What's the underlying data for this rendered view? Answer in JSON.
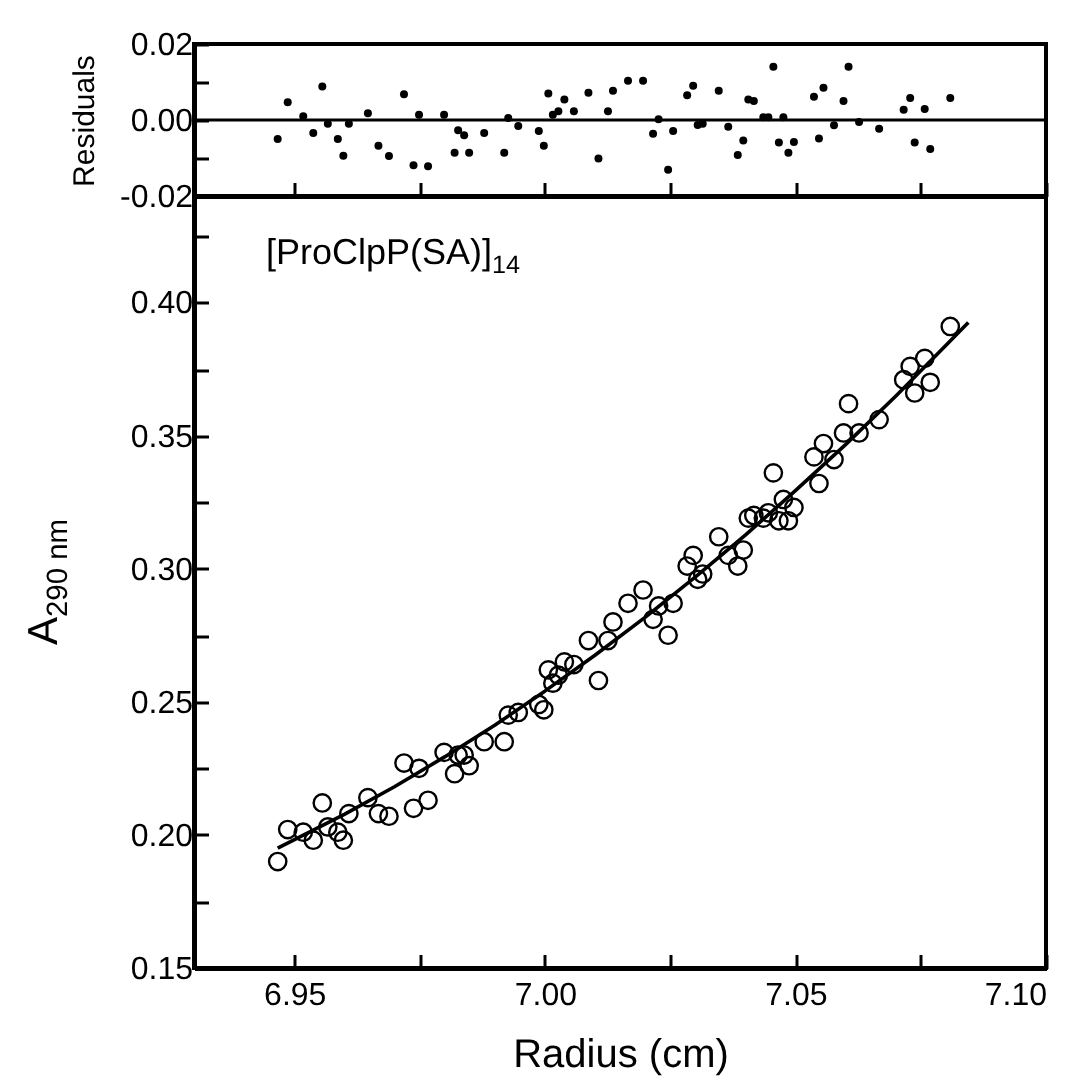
{
  "chart_data": [
    {
      "type": "scatter",
      "ylabel": "Residuals",
      "xlim": [
        6.93,
        7.1
      ],
      "ylim": [
        -0.02,
        0.02
      ],
      "tick_labels": "y",
      "grid": false,
      "xticks": [
        6.95,
        6.975,
        7,
        7.025,
        7.05,
        7.075,
        7.1
      ],
      "yticks": [
        0.02,
        {
          "value": 0.01,
          "label": null
        },
        {
          "value": 0,
          "label": "0.00"
        },
        {
          "value": -0.01,
          "label": null
        },
        -0.02
      ],
      "ref_lines": [
        {
          "axis": "y",
          "value": 0,
          "color": "#000000"
        }
      ],
      "series": [
        {
          "type": "scatter",
          "color": "#000000",
          "marker": "circle",
          "x": [
            6.9467,
            6.9487,
            6.9518,
            6.9538,
            6.9556,
            6.9567,
            6.9587,
            6.9598,
            6.9609,
            6.9647,
            6.9668,
            6.9689,
            6.9719,
            6.9738,
            6.9749,
            6.9767,
            6.9799,
            6.982,
            6.9827,
            6.9839,
            6.9849,
            6.9879,
            6.9919,
            6.9927,
            6.9947,
            6.9988,
            6.9998,
            7.0007,
            7.0016,
            7.0027,
            7.0039,
            7.0058,
            7.0087,
            7.0107,
            7.0126,
            7.0136,
            7.0166,
            7.0196,
            7.0216,
            7.0227,
            7.0246,
            7.0256,
            7.0284,
            7.0296,
            7.0305,
            7.0315,
            7.0347,
            7.0366,
            7.0385,
            7.0396,
            7.0406,
            7.0417,
            7.0436,
            7.0446,
            7.0456,
            7.0467,
            7.0476,
            7.0486,
            7.0497,
            7.0537,
            7.0547,
            7.0556,
            7.0577,
            7.0596,
            7.0606,
            7.0627,
            7.0667,
            7.0716,
            7.0729,
            7.0738,
            7.0758,
            7.0769,
            7.0809
          ],
          "values": [
            -0.005,
            0.0047,
            0.001,
            -0.0034,
            0.0088,
            -0.001,
            -0.005,
            -0.0094,
            -0.001,
            0.0018,
            -0.0068,
            -0.0095,
            0.0068,
            -0.0119,
            0.0014,
            -0.0122,
            0.0014,
            -0.0086,
            -0.0027,
            -0.004,
            -0.0086,
            -0.0034,
            -0.0086,
            0.0005,
            -0.0016,
            -0.0029,
            -0.0068,
            0.007,
            0.0014,
            0.0023,
            0.0054,
            0.0023,
            0.0072,
            -0.0101,
            0.0023,
            0.0077,
            0.0103,
            0.0103,
            -0.0036,
            0.0002,
            -0.0131,
            -0.0029,
            0.0065,
            0.009,
            -0.0013,
            -0.001,
            0.0077,
            -0.0018,
            -0.0092,
            -0.0054,
            0.0054,
            0.005,
            0.0007,
            0.0007,
            0.014,
            -0.0059,
            0.0007,
            -0.0086,
            -0.0058,
            0.0061,
            -0.0049,
            0.0085,
            -0.0014,
            0.005,
            0.014,
            -0.0005,
            -0.0023,
            0.0027,
            0.0058,
            -0.0059,
            0.0029,
            -0.0076,
            0.0058
          ]
        }
      ]
    },
    {
      "type": "scatter",
      "xlabel": "Radius (cm)",
      "ylabel": "A$_{290 nm}$",
      "annotations": [
        "[ProClpP(SA)]$_{14}$"
      ],
      "xlim": [
        6.93,
        7.1
      ],
      "ylim": [
        0.15,
        0.44
      ],
      "grid": false,
      "xticks": [
        6.95,
        {
          "value": 6.975,
          "label": null
        },
        {
          "value": 7,
          "label": "7.00"
        },
        {
          "value": 7.025,
          "label": null
        },
        7.05,
        {
          "value": 7.075,
          "label": null
        },
        {
          "value": 7.1,
          "label": "7.10"
        }
      ],
      "yticks": [
        0.15,
        {
          "value": 0.175,
          "label": null
        },
        {
          "value": 0.2,
          "label": "0.20"
        },
        {
          "value": 0.225,
          "label": null
        },
        0.25,
        {
          "value": 0.275,
          "label": null
        },
        {
          "value": 0.3,
          "label": "0.30"
        },
        {
          "value": 0.325,
          "label": null
        },
        0.35,
        {
          "value": 0.375,
          "label": null
        },
        {
          "value": 0.4,
          "label": "0.40"
        },
        {
          "value": 0.425,
          "label": null
        }
      ],
      "series": [
        {
          "type": "scatter",
          "color": "#000000",
          "marker": "circle",
          "x": [
            6.9467,
            6.9487,
            6.9518,
            6.9538,
            6.9556,
            6.9567,
            6.9587,
            6.9598,
            6.9609,
            6.9647,
            6.9668,
            6.9689,
            6.9719,
            6.9738,
            6.9749,
            6.9767,
            6.9799,
            6.982,
            6.9827,
            6.9839,
            6.9849,
            6.9879,
            6.9919,
            6.9927,
            6.9947,
            6.9988,
            6.9998,
            7.0007,
            7.0016,
            7.0027,
            7.0039,
            7.0058,
            7.0087,
            7.0107,
            7.0126,
            7.0136,
            7.0166,
            7.0196,
            7.0216,
            7.0227,
            7.0246,
            7.0256,
            7.0284,
            7.0296,
            7.0305,
            7.0315,
            7.0347,
            7.0366,
            7.0385,
            7.0396,
            7.0406,
            7.0417,
            7.0436,
            7.0446,
            7.0456,
            7.0467,
            7.0476,
            7.0486,
            7.0497,
            7.0537,
            7.0547,
            7.0556,
            7.0577,
            7.0596,
            7.0606,
            7.0627,
            7.0667,
            7.0716,
            7.0729,
            7.0738,
            7.0758,
            7.0769,
            7.0809
          ],
          "values": [
            0.19,
            0.202,
            0.201,
            0.198,
            0.212,
            0.203,
            0.201,
            0.198,
            0.208,
            0.214,
            0.208,
            0.207,
            0.227,
            0.21,
            0.225,
            0.213,
            0.231,
            0.223,
            0.23,
            0.23,
            0.226,
            0.235,
            0.235,
            0.245,
            0.246,
            0.249,
            0.247,
            0.262,
            0.257,
            0.26,
            0.265,
            0.264,
            0.273,
            0.258,
            0.273,
            0.28,
            0.287,
            0.292,
            0.281,
            0.286,
            0.275,
            0.287,
            0.301,
            0.305,
            0.296,
            0.298,
            0.312,
            0.305,
            0.301,
            0.307,
            0.319,
            0.32,
            0.319,
            0.321,
            0.336,
            0.318,
            0.326,
            0.318,
            0.323,
            0.342,
            0.332,
            0.347,
            0.341,
            0.351,
            0.362,
            0.351,
            0.356,
            0.371,
            0.376,
            0.366,
            0.379,
            0.37,
            0.391
          ]
        },
        {
          "type": "line",
          "color": "#000000",
          "x": [
            6.9467,
            6.96,
            6.97,
            6.98,
            6.99,
            7.0,
            7.01,
            7.02,
            7.03,
            7.04,
            7.05,
            7.06,
            7.07,
            7.08,
            7.0845
          ],
          "values": [
            0.195,
            0.2077,
            0.2181,
            0.2293,
            0.2412,
            0.254,
            0.2675,
            0.2817,
            0.2968,
            0.3126,
            0.3293,
            0.3466,
            0.3648,
            0.3838,
            0.3925
          ]
        }
      ]
    }
  ]
}
